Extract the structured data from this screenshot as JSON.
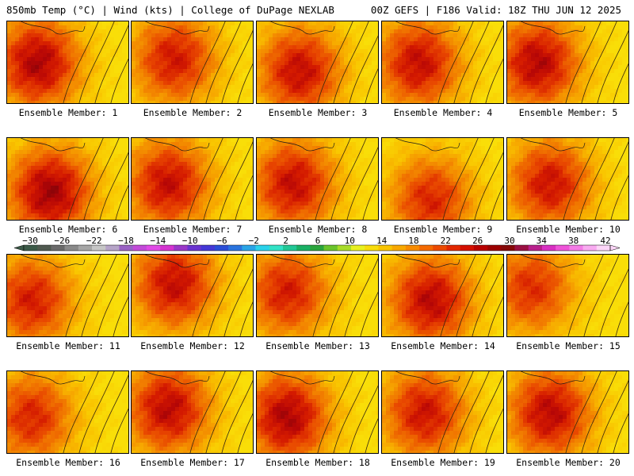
{
  "header": {
    "title_left": "850mb Temp (°C) | Wind (kts) | College of DuPage NEXLAB",
    "title_right": "00Z GEFS | F186 Valid: 18Z THU JUN 12 2025"
  },
  "panels": [
    {
      "label": "Ensemble Member: 1",
      "core_x": 0.25,
      "core_y": 0.5,
      "intensity": 0.92
    },
    {
      "label": "Ensemble Member: 2",
      "core_x": 0.35,
      "core_y": 0.45,
      "intensity": 0.8
    },
    {
      "label": "Ensemble Member: 3",
      "core_x": 0.35,
      "core_y": 0.6,
      "intensity": 0.85
    },
    {
      "label": "Ensemble Member: 4",
      "core_x": 0.3,
      "core_y": 0.5,
      "intensity": 0.85
    },
    {
      "label": "Ensemble Member: 5",
      "core_x": 0.25,
      "core_y": 0.5,
      "intensity": 0.9
    },
    {
      "label": "Ensemble Member: 6",
      "core_x": 0.35,
      "core_y": 0.65,
      "intensity": 0.95
    },
    {
      "label": "Ensemble Member: 7",
      "core_x": 0.3,
      "core_y": 0.55,
      "intensity": 0.85
    },
    {
      "label": "Ensemble Member: 8",
      "core_x": 0.3,
      "core_y": 0.55,
      "intensity": 0.85
    },
    {
      "label": "Ensemble Member: 9",
      "core_x": 0.4,
      "core_y": 0.75,
      "intensity": 0.75
    },
    {
      "label": "Ensemble Member: 10",
      "core_x": 0.35,
      "core_y": 0.55,
      "intensity": 0.82
    },
    {
      "label": "Ensemble Member: 11",
      "core_x": 0.2,
      "core_y": 0.55,
      "intensity": 0.78
    },
    {
      "label": "Ensemble Member: 12",
      "core_x": 0.35,
      "core_y": 0.35,
      "intensity": 0.85
    },
    {
      "label": "Ensemble Member: 13",
      "core_x": 0.25,
      "core_y": 0.45,
      "intensity": 0.78
    },
    {
      "label": "Ensemble Member: 14",
      "core_x": 0.4,
      "core_y": 0.55,
      "intensity": 0.88
    },
    {
      "label": "Ensemble Member: 15",
      "core_x": 0.2,
      "core_y": 0.4,
      "intensity": 0.72
    },
    {
      "label": "Ensemble Member: 16",
      "core_x": 0.2,
      "core_y": 0.55,
      "intensity": 0.75
    },
    {
      "label": "Ensemble Member: 17",
      "core_x": 0.3,
      "core_y": 0.45,
      "intensity": 0.88
    },
    {
      "label": "Ensemble Member: 18",
      "core_x": 0.25,
      "core_y": 0.55,
      "intensity": 0.92
    },
    {
      "label": "Ensemble Member: 19",
      "core_x": 0.35,
      "core_y": 0.5,
      "intensity": 0.82
    },
    {
      "label": "Ensemble Member: 20",
      "core_x": 0.35,
      "core_y": 0.5,
      "intensity": 0.88
    }
  ],
  "colorbar": {
    "labels": [
      "−30",
      "−26",
      "−22",
      "−18",
      "−14",
      "−10",
      "−6",
      "−2",
      "2",
      "6",
      "10",
      "14",
      "18",
      "22",
      "26",
      "30",
      "34",
      "38",
      "42"
    ],
    "colors": [
      "#3c5a48",
      "#505a50",
      "#6a6a6a",
      "#8a8a8a",
      "#a6a6a6",
      "#c6c6c6",
      "#b6a4c8",
      "#9a62c4",
      "#c24ad8",
      "#e04ae6",
      "#d434d0",
      "#9a38c8",
      "#6a34d0",
      "#4438d6",
      "#2a4ed6",
      "#2a74de",
      "#2aa4e6",
      "#2ad2ea",
      "#32e2c6",
      "#22c896",
      "#1ab064",
      "#2aa43c",
      "#6ac42c",
      "#a8dc2a",
      "#e8f020",
      "#f8dc0c",
      "#f8c400",
      "#f8a800",
      "#f88c00",
      "#f46a00",
      "#ec4a00",
      "#e22800",
      "#d41000",
      "#b80000",
      "#9c0000",
      "#860808",
      "#9a1042",
      "#b8208c",
      "#d830c2",
      "#ee54d8",
      "#f47ce6",
      "#f8aaf0",
      "#fcd6f8"
    ]
  }
}
